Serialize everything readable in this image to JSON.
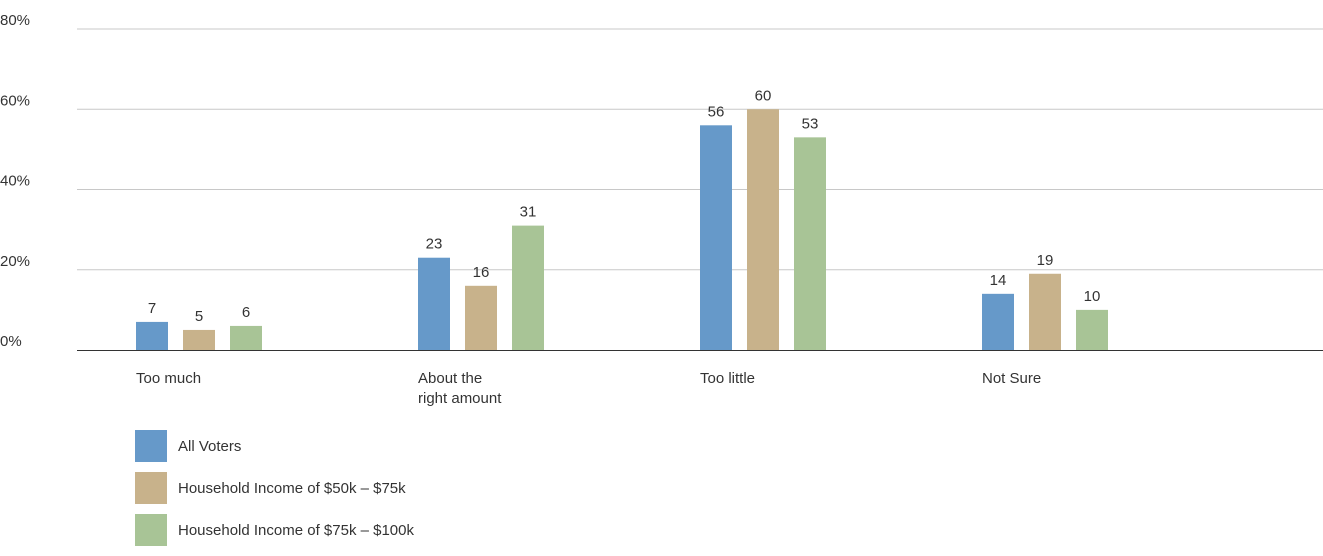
{
  "chart_data": {
    "type": "bar",
    "title": "",
    "xlabel": "",
    "ylabel": "",
    "ylim": [
      0,
      80
    ],
    "yticks": [
      "0%",
      "20%",
      "40%",
      "60%",
      "80%"
    ],
    "categories": [
      [
        "Too much"
      ],
      [
        "About the",
        "right amount"
      ],
      [
        "Too little"
      ],
      [
        "Not Sure"
      ]
    ],
    "series": [
      {
        "name": "All Voters",
        "color": "#6699c9",
        "values": [
          7,
          23,
          56,
          14
        ]
      },
      {
        "name": "Household Income of $50k – $75k",
        "color": "#c8b28b",
        "values": [
          5,
          16,
          60,
          19
        ]
      },
      {
        "name": "Household Income of $75k – $100k",
        "color": "#a8c496",
        "values": [
          6,
          31,
          53,
          10
        ]
      }
    ],
    "grid": true,
    "legend_position": "bottom-left"
  }
}
